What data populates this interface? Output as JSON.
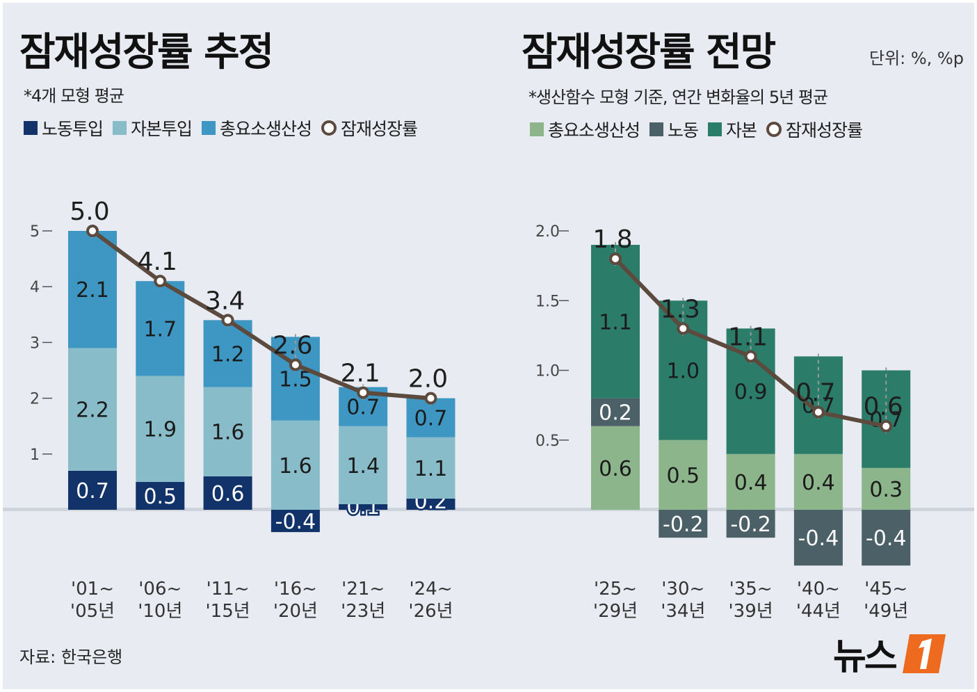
{
  "left": {
    "title": "잠재성장률 추정",
    "note": "*4개 모형 평균",
    "legend": [
      {
        "label": "노동투입",
        "color": "#12326a",
        "kind": "box"
      },
      {
        "label": "자본투입",
        "color": "#88bcc9",
        "kind": "box"
      },
      {
        "label": "총요소생산성",
        "color": "#3d97c2",
        "kind": "box"
      },
      {
        "label": "잠재성장률",
        "kind": "ring"
      }
    ]
  },
  "right": {
    "title": "잠재성장률 전망",
    "unit": "단위: %, %p",
    "note": "*생산함수 모형 기준, 연간 변화율의 5년 평균",
    "legend": [
      {
        "label": "총요소생산성",
        "color": "#8db58b",
        "kind": "box"
      },
      {
        "label": "노동",
        "color": "#4c6068",
        "kind": "box"
      },
      {
        "label": "자본",
        "color": "#2c7c6a",
        "kind": "box"
      },
      {
        "label": "잠재성장률",
        "kind": "ring"
      }
    ]
  },
  "source": "자료: 한국은행",
  "logo": "뉴스",
  "chart_data": [
    {
      "type": "bar",
      "stacked": true,
      "title": "잠재성장률 추정",
      "categories": [
        [
          "'01~",
          "'05년"
        ],
        [
          "'06~",
          "'10년"
        ],
        [
          "'11~",
          "'15년"
        ],
        [
          "'16~",
          "'20년"
        ],
        [
          "'21~",
          "'23년"
        ],
        [
          "'24~",
          "'26년"
        ]
      ],
      "series": [
        {
          "name": "노동투입",
          "values": [
            0.7,
            0.5,
            0.6,
            -0.4,
            0.1,
            0.2
          ],
          "labels": [
            "0.7",
            "0.5",
            "0.6",
            "-0.4",
            "0.1",
            "0.2"
          ],
          "color": "#12326a"
        },
        {
          "name": "자본투입",
          "values": [
            2.2,
            1.9,
            1.6,
            1.6,
            1.4,
            1.1
          ],
          "labels": [
            "2.2",
            "1.9",
            "1.6",
            "1.6",
            "1.4",
            "1.1"
          ],
          "color": "#88bcc9"
        },
        {
          "name": "총요소생산성",
          "values": [
            2.1,
            1.7,
            1.2,
            1.5,
            0.7,
            0.7
          ],
          "labels": [
            "2.1",
            "1.7",
            "1.2",
            "1.5",
            "0.7",
            "0.7"
          ],
          "color": "#3d97c2"
        }
      ],
      "line": {
        "name": "잠재성장률",
        "values": [
          5.0,
          4.1,
          3.4,
          2.6,
          2.1,
          2.0
        ],
        "labels": [
          "5.0",
          "4.1",
          "3.4",
          "2.6",
          "2.1",
          "2.0"
        ]
      },
      "yticks": [
        1,
        2,
        3,
        4,
        5
      ],
      "ytick_labels": [
        "1",
        "2",
        "3",
        "4",
        "5"
      ]
    },
    {
      "type": "bar",
      "stacked": true,
      "title": "잠재성장률 전망",
      "categories": [
        [
          "'25~",
          "'29년"
        ],
        [
          "'30~",
          "'34년"
        ],
        [
          "'35~",
          "'39년"
        ],
        [
          "'40~",
          "'44년"
        ],
        [
          "'45~",
          "'49년"
        ]
      ],
      "series": [
        {
          "name": "총요소생산성",
          "values": [
            0.6,
            0.5,
            0.4,
            0.4,
            0.3
          ],
          "labels": [
            "0.6",
            "0.5",
            "0.4",
            "0.4",
            "0.3"
          ],
          "color": "#8db58b"
        },
        {
          "name": "노동",
          "values": [
            0.2,
            -0.2,
            -0.2,
            -0.4,
            -0.4
          ],
          "labels": [
            "0.2",
            "-0.2",
            "-0.2",
            "-0.4",
            "-0.4"
          ],
          "color": "#4c6068"
        },
        {
          "name": "자본",
          "values": [
            1.1,
            1.0,
            0.9,
            0.7,
            0.7
          ],
          "labels": [
            "1.1",
            "1.0",
            "0.9",
            "0.7",
            "0.7"
          ],
          "color": "#2c7c6a"
        }
      ],
      "line": {
        "name": "잠재성장률",
        "values": [
          1.8,
          1.3,
          1.1,
          0.7,
          0.6
        ],
        "labels": [
          "1.8",
          "1.3",
          "1.1",
          "0.7",
          "0.6"
        ]
      },
      "yticks": [
        0.5,
        1.0,
        1.5,
        2.0
      ],
      "ytick_labels": [
        "0.5",
        "1.0",
        "1.5",
        "2.0"
      ]
    }
  ]
}
